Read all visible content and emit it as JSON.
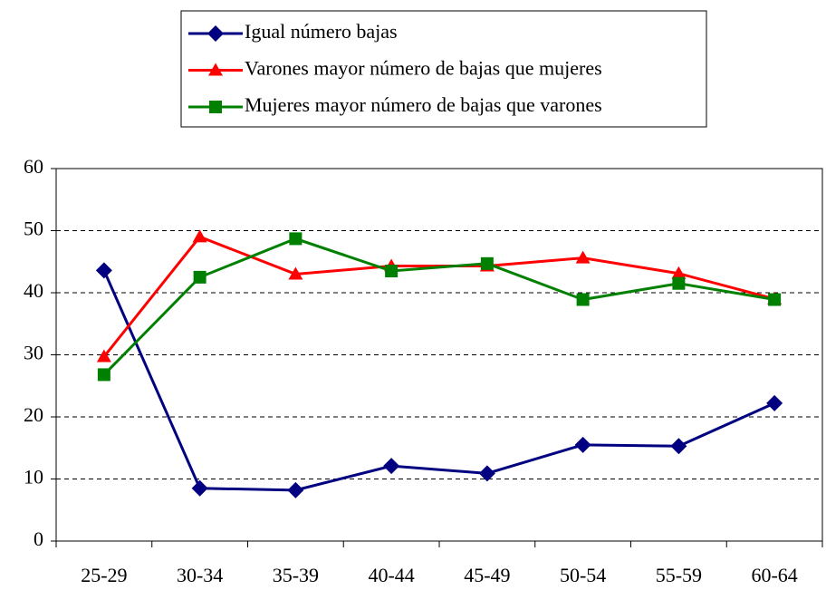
{
  "chart_data": {
    "type": "line",
    "categories": [
      "25-29",
      "30-34",
      "35-39",
      "40-44",
      "45-49",
      "50-54",
      "55-59",
      "60-64"
    ],
    "series": [
      {
        "name": "Igual número bajas",
        "color": "#000080",
        "marker": "diamond",
        "values": [
          43.6,
          8.5,
          8.2,
          12.1,
          10.9,
          15.5,
          15.3,
          22.2
        ]
      },
      {
        "name": "Varones mayor número de bajas que mujeres",
        "color": "#ff0000",
        "marker": "triangle",
        "values": [
          29.7,
          49.0,
          43.0,
          44.3,
          44.3,
          45.6,
          43.1,
          39.0
        ]
      },
      {
        "name": "Mujeres mayor número de bajas que varones",
        "color": "#008000",
        "marker": "square",
        "values": [
          26.8,
          42.5,
          48.7,
          43.5,
          44.7,
          38.9,
          41.5,
          38.9
        ]
      }
    ],
    "ylim": [
      0,
      60
    ],
    "yticks": [
      0,
      10,
      20,
      30,
      40,
      50,
      60
    ],
    "grid": true
  }
}
